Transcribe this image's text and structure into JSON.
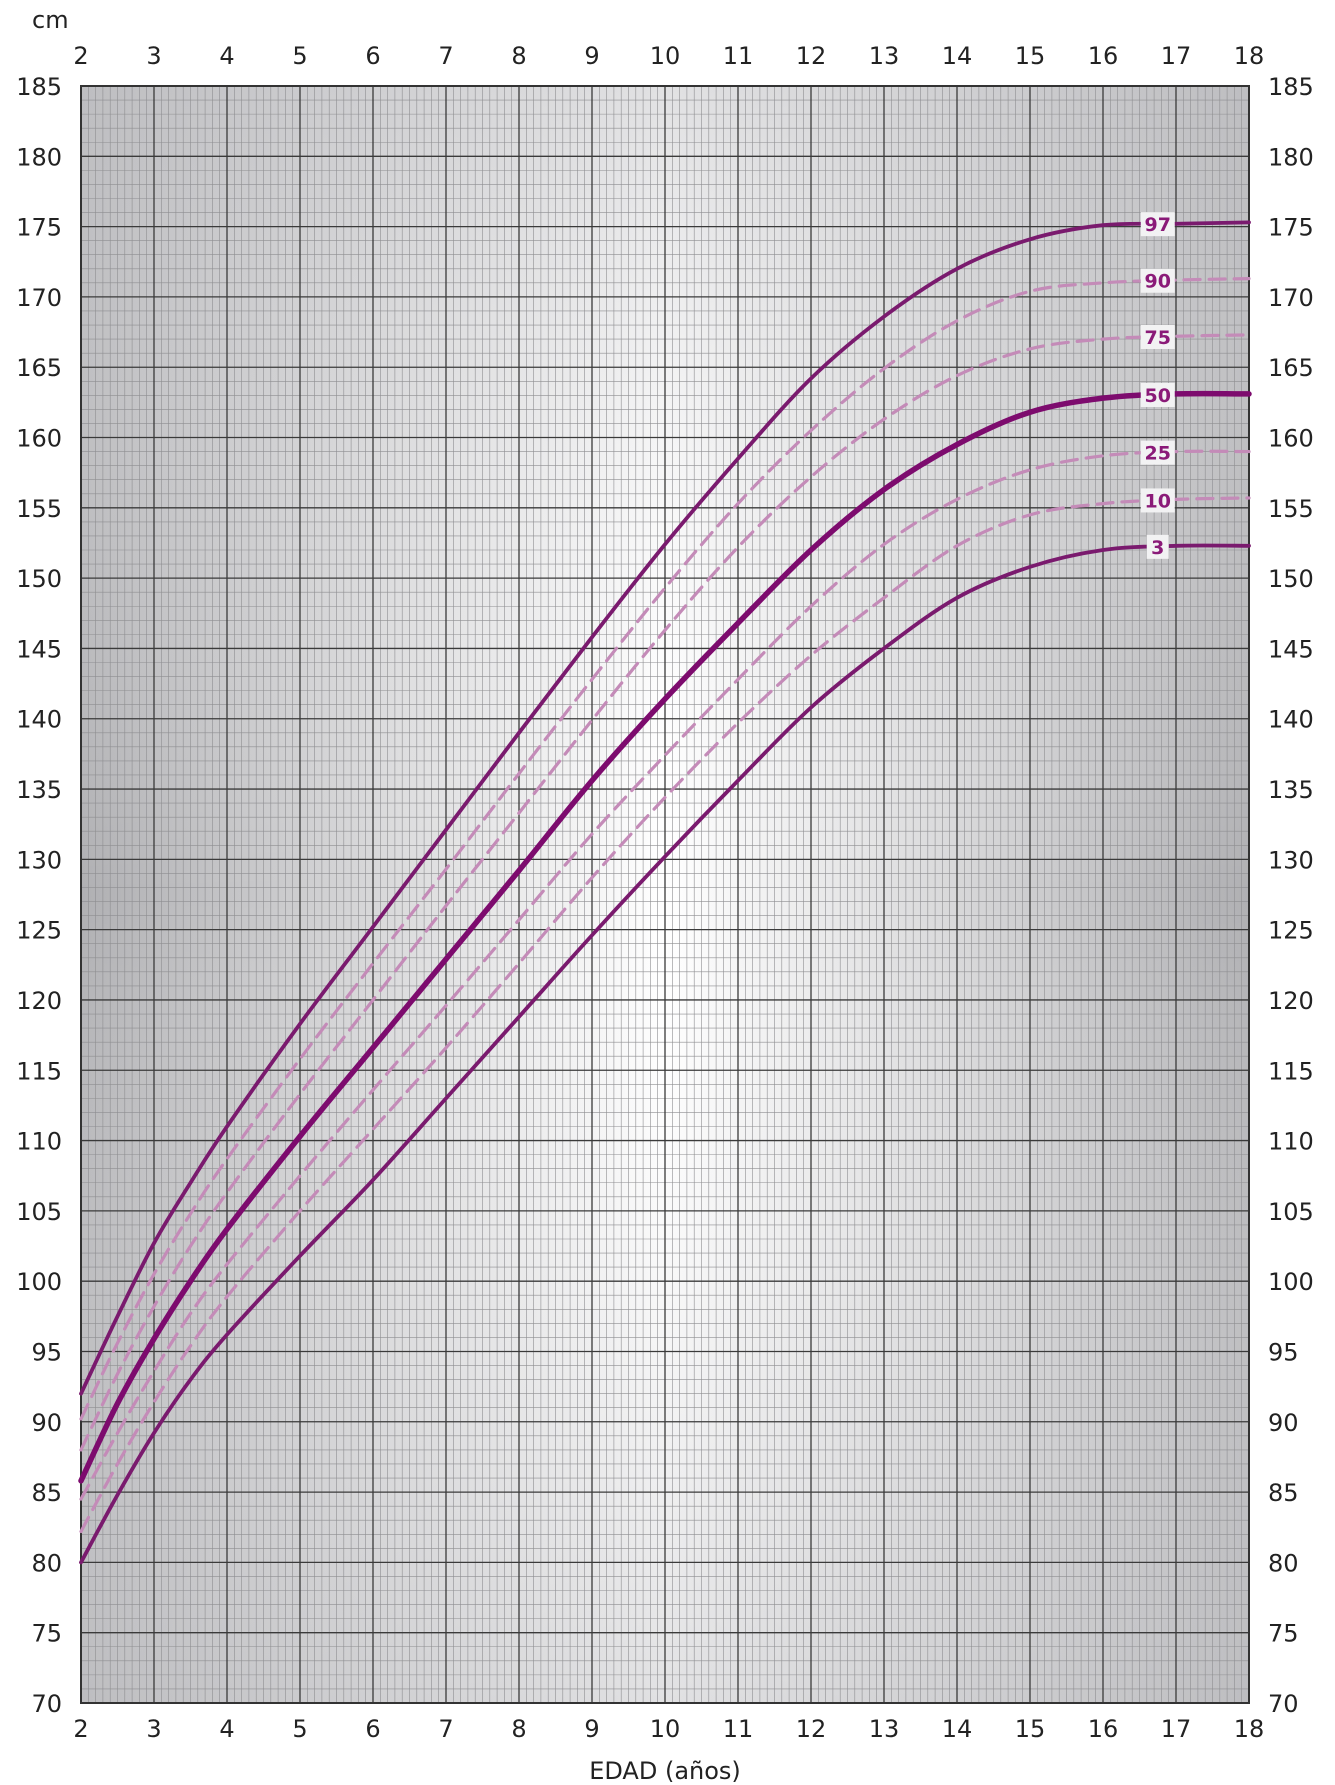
{
  "chart_data": {
    "type": "line",
    "title": "",
    "xlabel": "EDAD (años)",
    "ylabel": "cm",
    "xlim": [
      2,
      18
    ],
    "ylim": [
      70,
      185
    ],
    "x_ticks": [
      2,
      3,
      4,
      5,
      6,
      7,
      8,
      9,
      10,
      11,
      12,
      13,
      14,
      15,
      16,
      17,
      18
    ],
    "y_ticks": [
      70,
      75,
      80,
      85,
      90,
      95,
      100,
      105,
      110,
      115,
      120,
      125,
      130,
      135,
      140,
      145,
      150,
      155,
      160,
      165,
      170,
      175,
      180,
      185
    ],
    "grid": true,
    "colors": {
      "solid": "#7a1a6e",
      "median": "#7d0b6e",
      "dashed": "#c48bb8",
      "label": "#8a1a78",
      "background_edge": "#b5b5b8",
      "background_center": "#ffffff"
    },
    "x": [
      2,
      2.5,
      3,
      3.5,
      4,
      5,
      6,
      7,
      8,
      9,
      10,
      11,
      12,
      13,
      14,
      15,
      16,
      17,
      18
    ],
    "series": [
      {
        "name": "97",
        "style": "solid",
        "values": [
          92,
          97.5,
          102.7,
          107,
          111,
          118.3,
          125.2,
          132.1,
          139,
          145.8,
          152.4,
          158.5,
          164.2,
          168.6,
          172,
          174.1,
          175.1,
          175.2,
          175.3
        ]
      },
      {
        "name": "90",
        "style": "dashed",
        "values": [
          90.2,
          95.6,
          100.5,
          104.8,
          108.7,
          115.8,
          122.6,
          129.3,
          136.1,
          142.8,
          149.3,
          155.3,
          160.5,
          164.9,
          168.3,
          170.4,
          171,
          171.2,
          171.3
        ]
      },
      {
        "name": "75",
        "style": "dashed",
        "values": [
          88,
          93.4,
          98.2,
          102.5,
          106.3,
          113.3,
          120,
          126.7,
          133.3,
          139.9,
          146.3,
          152.2,
          157.2,
          161.3,
          164.4,
          166.3,
          167,
          167.2,
          167.3
        ]
      },
      {
        "name": "50",
        "style": "bold",
        "values": [
          85.8,
          91.3,
          95.9,
          100,
          103.7,
          110.3,
          116.6,
          122.9,
          129.2,
          135.6,
          141.4,
          146.8,
          152,
          156.3,
          159.5,
          161.8,
          162.8,
          163.1,
          163.1
        ]
      },
      {
        "name": "25",
        "style": "dashed",
        "values": [
          84.5,
          89.2,
          93.6,
          97.7,
          101.2,
          107.5,
          113.6,
          119.6,
          125.7,
          131.8,
          137.4,
          142.8,
          148,
          152.4,
          155.6,
          157.7,
          158.7,
          159,
          159
        ]
      },
      {
        "name": "10",
        "style": "dashed",
        "values": [
          82.2,
          87,
          91.4,
          95.4,
          98.9,
          105,
          110.8,
          116.6,
          122.6,
          128.7,
          134.4,
          139.7,
          144.5,
          148.6,
          152.3,
          154.5,
          155.3,
          155.6,
          155.7
        ]
      },
      {
        "name": "3",
        "style": "solid",
        "values": [
          80,
          84.8,
          89.2,
          93,
          96.2,
          101.8,
          107.2,
          113,
          118.8,
          124.6,
          130.2,
          135.6,
          140.8,
          145,
          148.6,
          150.8,
          152,
          152.3,
          152.3
        ]
      }
    ]
  }
}
